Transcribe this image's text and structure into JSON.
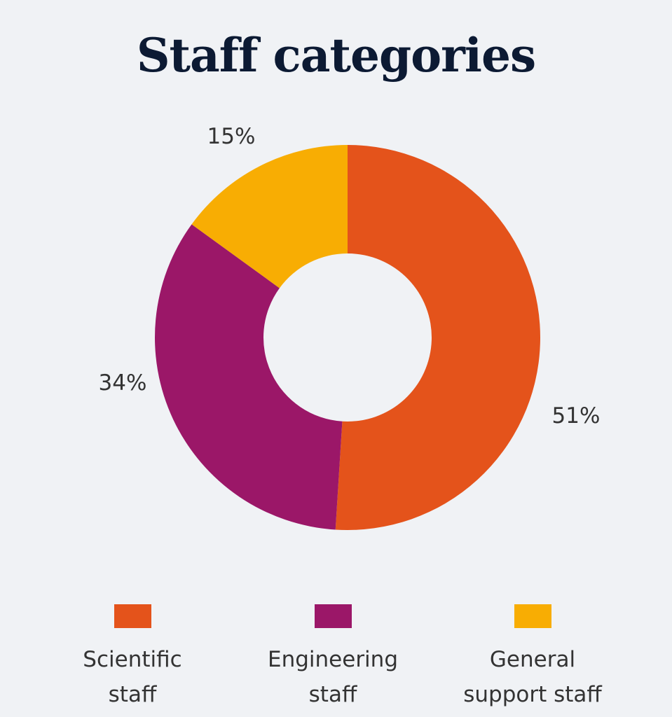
{
  "chart_data": {
    "type": "pie",
    "variant": "donut",
    "title": "Staff categories",
    "categories": [
      "Scientific staff",
      "Engineering staff",
      "General support staff"
    ],
    "legend_lines": [
      [
        "Scientific",
        "staff"
      ],
      [
        "Engineering",
        "staff"
      ],
      [
        "General",
        "support staff"
      ]
    ],
    "values": [
      51,
      34,
      15
    ],
    "data_labels": [
      "51%",
      "34%",
      "15%"
    ],
    "colors": [
      "#e4531b",
      "#9b1768",
      "#f8ad03"
    ],
    "legend_position": "bottom"
  }
}
